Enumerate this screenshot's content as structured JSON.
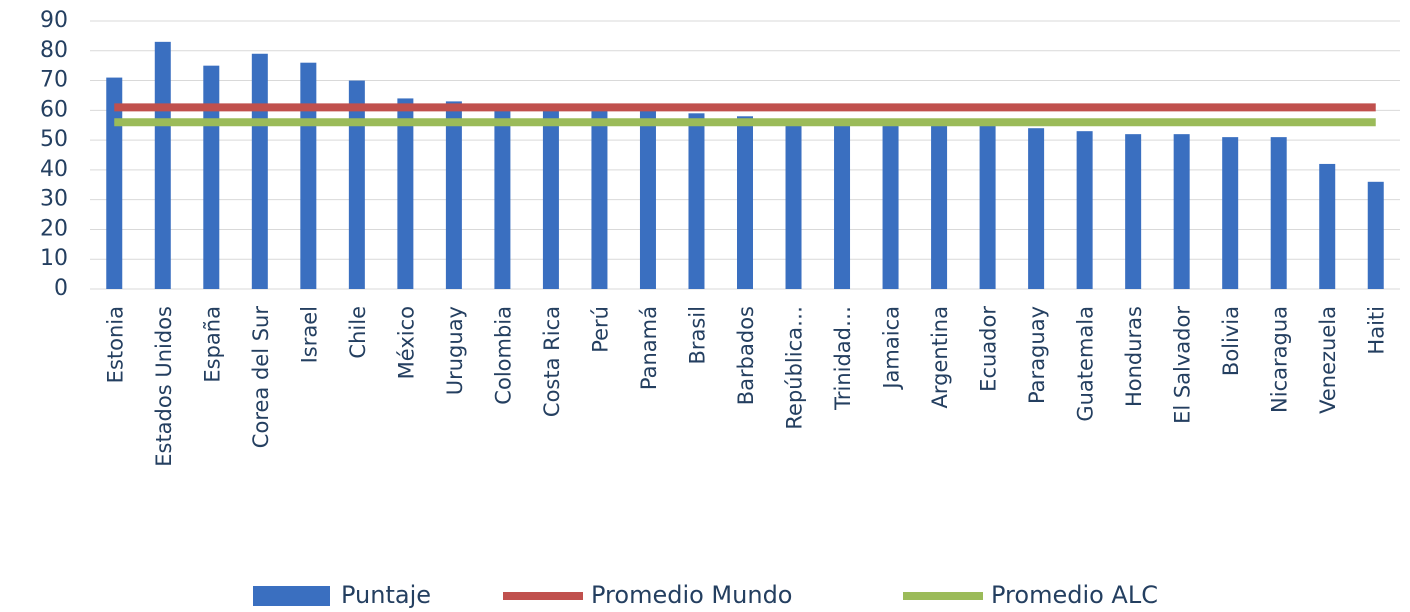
{
  "chart_data": {
    "type": "bar",
    "categories": [
      "Estonia",
      "Estados Unidos",
      "España",
      "Corea del Sur",
      "Israel",
      "Chile",
      "México",
      "Uruguay",
      "Colombia",
      "Costa Rica",
      "Perú",
      "Panamá",
      "Brasil",
      "Barbados",
      "República…",
      "Trinidad…",
      "Jamaica",
      "Argentina",
      "Ecuador",
      "Paraguay",
      "Guatemala",
      "Honduras",
      "El Salvador",
      "Bolivia",
      "Nicaragua",
      "Venezuela",
      "Haiti"
    ],
    "series": [
      {
        "name": "Puntaje",
        "type": "bar",
        "color": "#3a6fc0",
        "values": [
          71,
          83,
          75,
          79,
          76,
          70,
          64,
          63,
          60,
          60,
          60,
          60,
          59,
          58,
          57,
          57,
          56,
          56,
          55,
          54,
          53,
          52,
          52,
          51,
          51,
          42,
          36
        ]
      },
      {
        "name": "Promedio Mundo",
        "type": "line",
        "color": "#c0504d",
        "values": [
          61,
          61,
          61,
          61,
          61,
          61,
          61,
          61,
          61,
          61,
          61,
          61,
          61,
          61,
          61,
          61,
          61,
          61,
          61,
          61,
          61,
          61,
          61,
          61,
          61,
          61,
          61
        ]
      },
      {
        "name": "Promedio ALC",
        "type": "line",
        "color": "#9bbb59",
        "values": [
          56,
          56,
          56,
          56,
          56,
          56,
          56,
          56,
          56,
          56,
          56,
          56,
          56,
          56,
          56,
          56,
          56,
          56,
          56,
          56,
          56,
          56,
          56,
          56,
          56,
          56,
          56
        ]
      }
    ],
    "ylim": [
      0,
      90
    ],
    "yticks": [
      0,
      10,
      20,
      30,
      40,
      50,
      60,
      70,
      80,
      90
    ],
    "grid": true,
    "legend": "bottom"
  }
}
